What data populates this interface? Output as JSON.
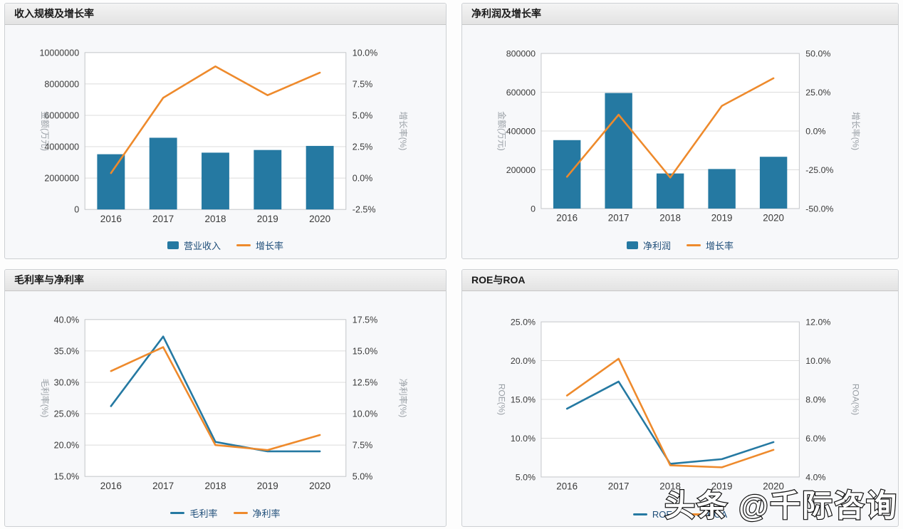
{
  "watermark": {
    "text": "头条 @千际咨询"
  },
  "colors": {
    "bar_blue": "#2579A2",
    "line_orange": "#EE8A2C",
    "line_blue": "#2579A2",
    "legend_text": "#1F4E79",
    "axis_label": "#3A3A3A",
    "axis_title": "#9AA0A6",
    "grid_line": "#DCDCDC",
    "plot_border": "#C4C6C9",
    "plot_background": "#FFFFFF",
    "panel_background": "#F7F8FA"
  },
  "chart_data": [
    {
      "type": "bar",
      "title": "收入规模及增长率",
      "categories": [
        "2016",
        "2017",
        "2018",
        "2019",
        "2020"
      ],
      "series": [
        {
          "name": "营业收入",
          "type": "bar",
          "axis": "left",
          "color": "#2579A2",
          "values": [
            3520000,
            4570000,
            3620000,
            3790000,
            4050000
          ]
        },
        {
          "name": "增长率",
          "type": "line",
          "axis": "right",
          "color": "#EE8A2C",
          "values": [
            0.4,
            6.4,
            8.9,
            6.6,
            8.4
          ]
        }
      ],
      "left_axis": {
        "title": "金额(万元)",
        "min": 0,
        "max": 10000000,
        "step": 2000000,
        "format": "int"
      },
      "right_axis": {
        "title": "增长率(%)",
        "min": -2.5,
        "max": 10,
        "step": 2.5,
        "format": "pct"
      },
      "grid": true,
      "legend_position": "bottom"
    },
    {
      "type": "bar",
      "title": "净利润及增长率",
      "categories": [
        "2016",
        "2017",
        "2018",
        "2019",
        "2020"
      ],
      "series": [
        {
          "name": "净利润",
          "type": "bar",
          "axis": "left",
          "color": "#2579A2",
          "values": [
            353000,
            596000,
            181000,
            204000,
            267000
          ]
        },
        {
          "name": "增长率",
          "type": "line",
          "axis": "right",
          "color": "#EE8A2C",
          "values": [
            -29.5,
            10.5,
            -30.0,
            16.2,
            34.0
          ]
        }
      ],
      "left_axis": {
        "title": "金额(万元)",
        "min": 0,
        "max": 800000,
        "step": 200000,
        "format": "int"
      },
      "right_axis": {
        "title": "增长率(%)",
        "min": -50,
        "max": 50,
        "step": 25,
        "format": "pct"
      },
      "grid": true,
      "legend_position": "bottom"
    },
    {
      "type": "line",
      "title": "毛利率与净利率",
      "categories": [
        "2016",
        "2017",
        "2018",
        "2019",
        "2020"
      ],
      "series": [
        {
          "name": "毛利率",
          "type": "line",
          "axis": "left",
          "color": "#2579A2",
          "values": [
            26.2,
            37.3,
            20.5,
            19.0,
            19.0
          ]
        },
        {
          "name": "净利率",
          "type": "line",
          "axis": "right",
          "color": "#EE8A2C",
          "values": [
            13.4,
            15.3,
            7.5,
            7.1,
            8.3
          ]
        }
      ],
      "left_axis": {
        "title": "毛利率(%)",
        "min": 15,
        "max": 40,
        "step": 5,
        "format": "pct"
      },
      "right_axis": {
        "title": "净利率(%)",
        "min": 5,
        "max": 17.5,
        "step": 2.5,
        "format": "pct"
      },
      "grid": true,
      "legend_position": "bottom"
    },
    {
      "type": "line",
      "title": "ROE与ROA",
      "categories": [
        "2016",
        "2017",
        "2018",
        "2019",
        "2020"
      ],
      "series": [
        {
          "name": "ROE",
          "type": "line",
          "axis": "left",
          "color": "#2579A2",
          "values": [
            13.8,
            17.3,
            6.7,
            7.3,
            9.5
          ]
        },
        {
          "name": "ROA",
          "type": "line",
          "axis": "right",
          "color": "#EE8A2C",
          "values": [
            8.2,
            10.1,
            4.6,
            4.5,
            5.4
          ]
        }
      ],
      "left_axis": {
        "title": "ROE(%)",
        "min": 5,
        "max": 25,
        "step": 5,
        "format": "pct"
      },
      "right_axis": {
        "title": "ROA(%)",
        "min": 4,
        "max": 12,
        "step": 2,
        "format": "pct"
      },
      "grid": true,
      "legend_position": "bottom"
    }
  ]
}
